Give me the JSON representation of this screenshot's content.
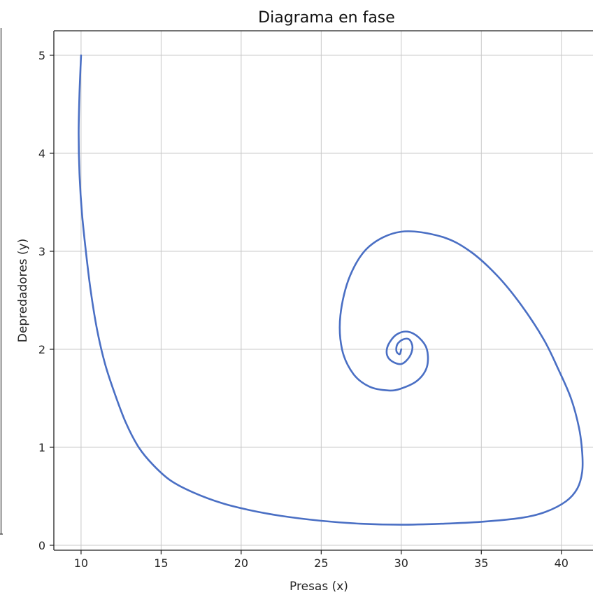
{
  "chart_data": {
    "type": "line",
    "title": "Diagrama en fase",
    "xlabel": "Presas (x)",
    "ylabel": "Depredadores (y)",
    "xlim": [
      8.3,
      42.5
    ],
    "ylim": [
      -0.05,
      5.25
    ],
    "xticks": [
      "10",
      "15",
      "20",
      "25",
      "30",
      "35",
      "40"
    ],
    "yticks": [
      "0",
      "1",
      "2",
      "3",
      "4",
      "5"
    ],
    "grid": true,
    "line_color": "#4a6fc4",
    "series": [
      {
        "x": [
          10.0,
          9.9,
          9.85,
          9.9,
          10.05,
          10.3,
          10.6,
          11.0,
          11.5,
          12.1,
          12.8,
          13.6,
          14.5,
          15.6,
          17.0,
          18.8,
          20.5,
          22.5,
          25.0,
          27.5,
          30.0,
          32.5,
          35.0,
          37.5,
          39.0,
          40.3,
          41.0,
          41.3,
          41.3,
          41.1,
          40.6,
          39.8,
          38.9,
          37.5,
          36.0,
          34.3,
          32.5,
          30.0,
          28.0,
          26.8,
          26.2,
          26.3,
          27.0,
          28.0,
          29.2,
          30.0,
          31.0,
          31.6,
          31.6,
          31.1,
          30.4,
          29.7,
          29.2,
          29.1,
          29.4,
          30.0,
          30.5,
          30.7,
          30.5,
          30.1,
          29.75,
          29.7,
          29.9,
          30.0
        ],
        "y": [
          5.0,
          4.6,
          4.2,
          3.8,
          3.4,
          3.0,
          2.6,
          2.2,
          1.85,
          1.55,
          1.25,
          1.0,
          0.82,
          0.66,
          0.54,
          0.43,
          0.36,
          0.3,
          0.25,
          0.22,
          0.21,
          0.22,
          0.24,
          0.28,
          0.34,
          0.45,
          0.58,
          0.75,
          0.95,
          1.2,
          1.5,
          1.8,
          2.1,
          2.45,
          2.75,
          3.0,
          3.15,
          3.2,
          3.05,
          2.75,
          2.35,
          2.0,
          1.75,
          1.62,
          1.58,
          1.6,
          1.68,
          1.82,
          2.0,
          2.12,
          2.18,
          2.15,
          2.05,
          1.95,
          1.88,
          1.85,
          1.92,
          2.02,
          2.1,
          2.1,
          2.05,
          1.98,
          1.95,
          2.0
        ]
      }
    ]
  }
}
